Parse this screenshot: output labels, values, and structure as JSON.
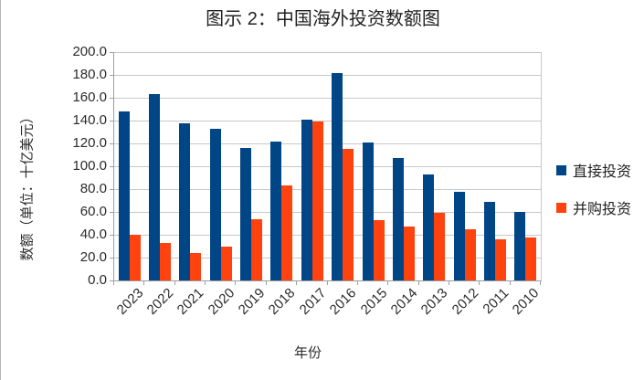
{
  "title": "图示 2：中国海外投资数额图",
  "chart_data": {
    "type": "bar",
    "title": "图示 2：中国海外投资数额图",
    "categories": [
      "2023",
      "2022",
      "2021",
      "2020",
      "2019",
      "2018",
      "2017",
      "2016",
      "2015",
      "2014",
      "2013",
      "2012",
      "2011",
      "2010"
    ],
    "series": [
      {
        "name": "直接投资",
        "color": "#004586",
        "values": [
          148,
          163,
          138,
          133,
          116,
          122,
          141,
          182,
          121,
          107,
          93,
          78,
          69,
          60
        ]
      },
      {
        "name": "并购投资",
        "color": "#FF420E",
        "values": [
          40,
          33,
          24,
          30,
          54,
          83,
          139,
          115,
          53,
          47,
          59,
          45,
          36,
          38
        ]
      }
    ],
    "xlabel": "年份",
    "ylabel": "数额（单位：十亿美元）",
    "ylim": [
      0,
      200
    ],
    "ytick_step": 20,
    "ytick_labels": [
      "0.0",
      "20.0",
      "40.0",
      "60.0",
      "80.0",
      "100.0",
      "120.0",
      "140.0",
      "160.0",
      "180.0",
      "200.0"
    ],
    "grid": true,
    "legend_position": "right"
  }
}
